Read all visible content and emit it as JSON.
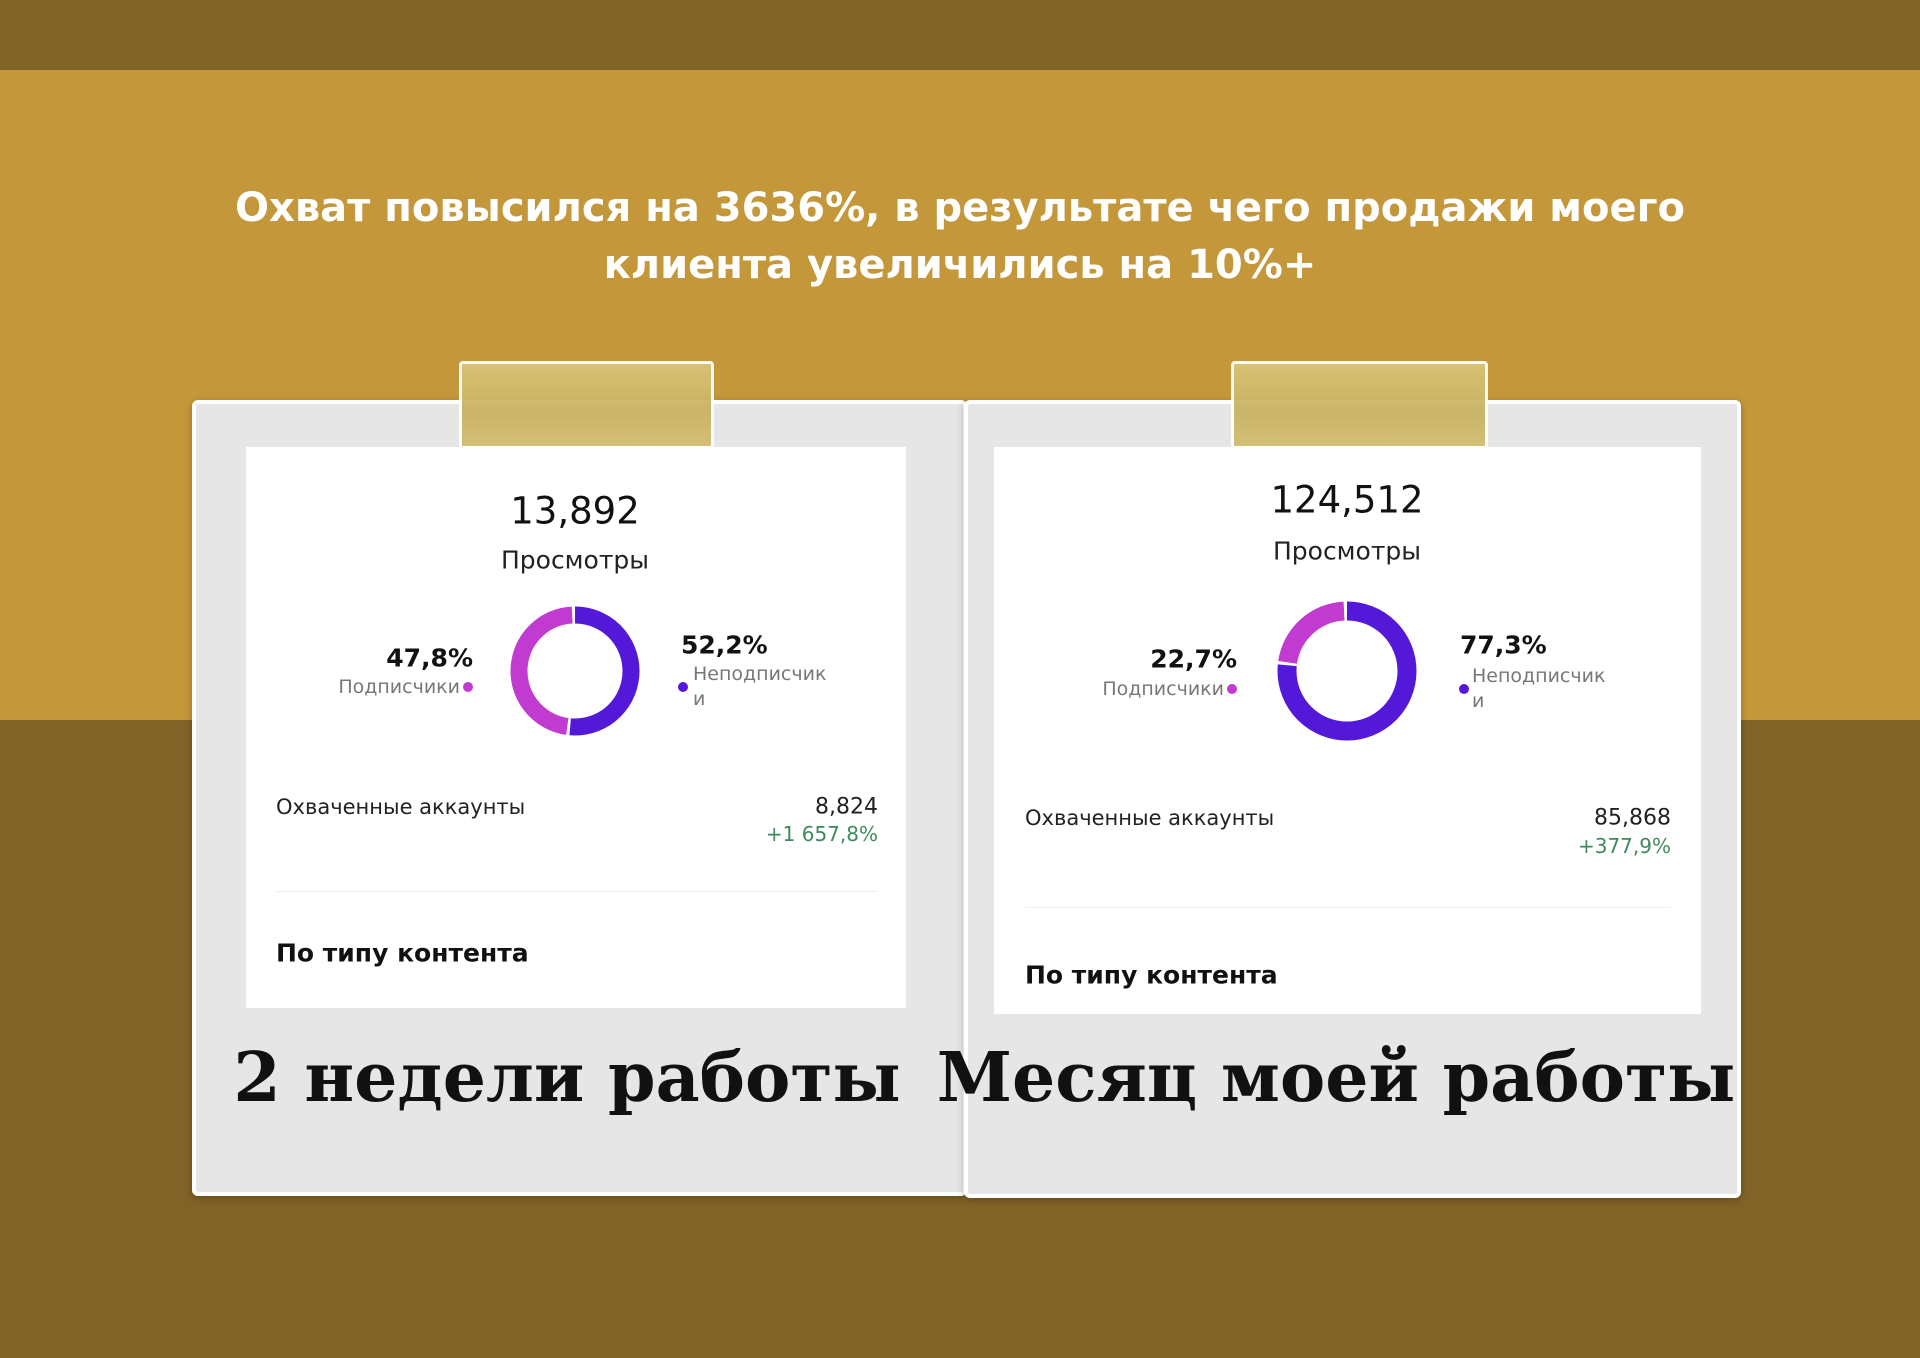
{
  "header": {
    "title_lines": [
      "Охват повысился на 3636%, в результате чего продажи моего",
      "клиента увеличились на 10%+"
    ]
  },
  "panels": [
    {
      "views": "13,892",
      "views_label": "Просмотры",
      "donut": {
        "names": [
          "Подписчики",
          "Неподписчики"
        ],
        "values": [
          47.8,
          52.2
        ],
        "value_labels": [
          "47,8%",
          "52,2%"
        ],
        "colors": [
          "#c13bd0",
          "#5418d9"
        ]
      },
      "accounts_label": "Охваченные аккаунты",
      "accounts": "8,824",
      "accounts_change": "+1 657,8%",
      "section": "По типу контента",
      "caption": "2 недели работы"
    },
    {
      "views": "124,512",
      "views_label": "Просмотры",
      "donut": {
        "names": [
          "Подписчики",
          "Неподписчики"
        ],
        "values": [
          22.7,
          77.3
        ],
        "value_labels": [
          "22,7%",
          "77,3%"
        ],
        "colors": [
          "#c13bd0",
          "#5418d9"
        ]
      },
      "accounts_label": "Охваченные аккаунты",
      "accounts": "85,868",
      "accounts_change": "+377,9%",
      "section": "По типу контента",
      "caption": "Месяц моей работы"
    }
  ]
}
